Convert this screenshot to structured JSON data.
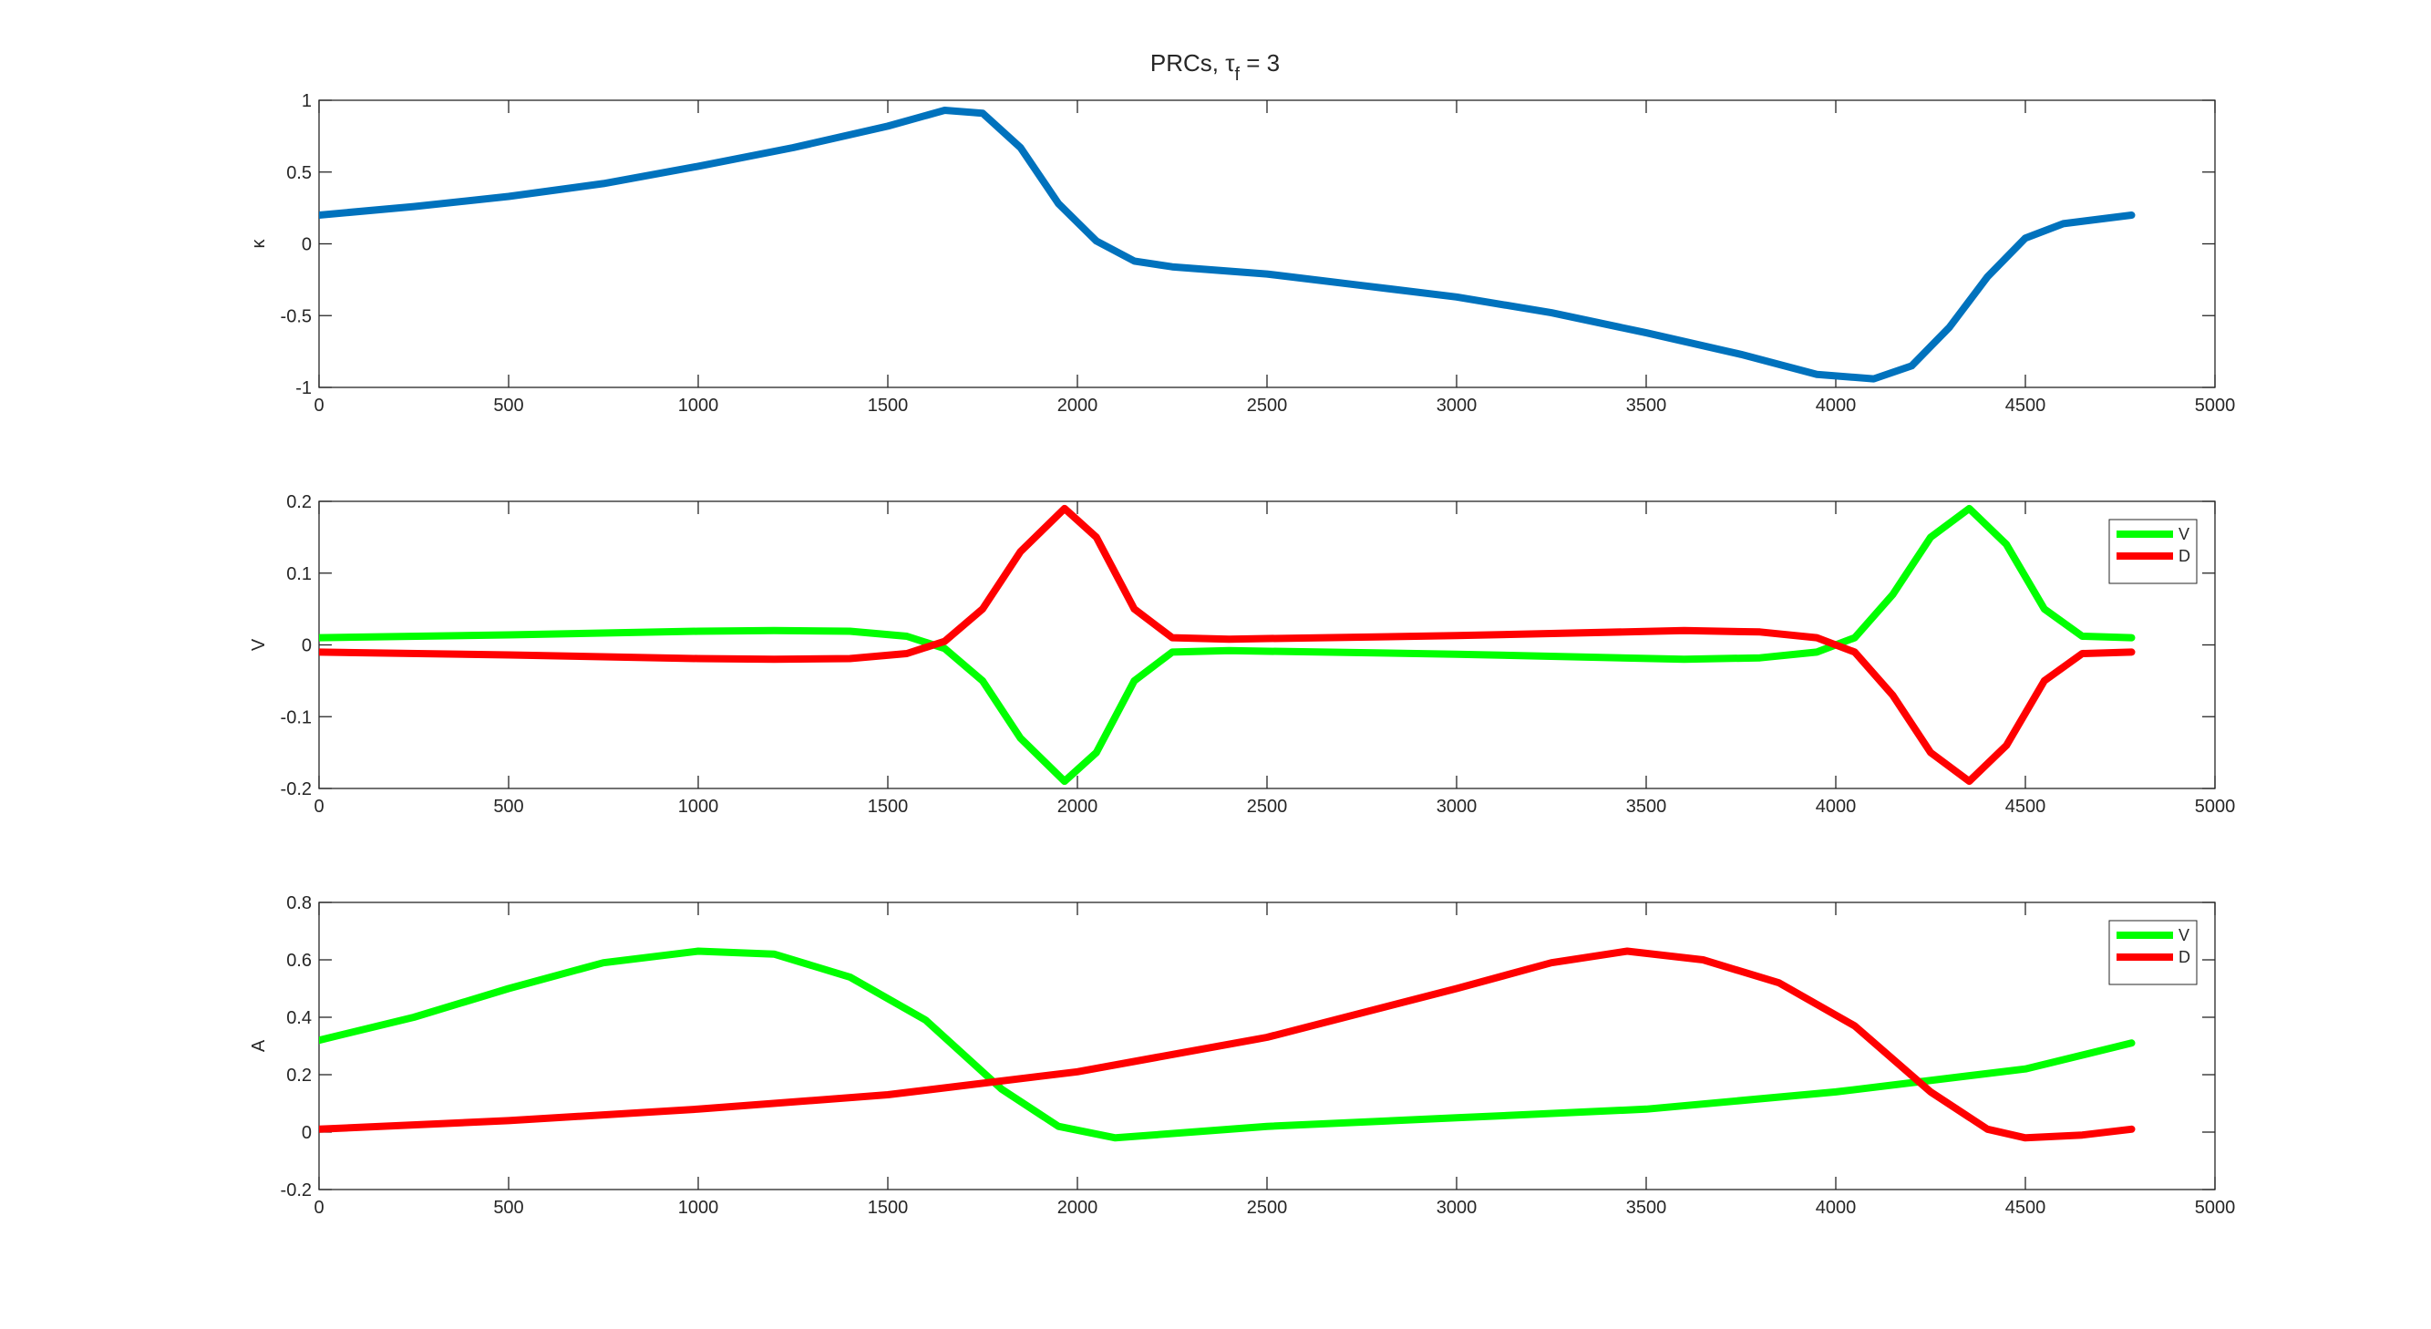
{
  "figure": {
    "title": "PRCs, τ",
    "title_sub": "f",
    "title_tail": " = 3"
  },
  "chart_data": [
    {
      "type": "line",
      "ylabel": "κ",
      "xlim": [
        0,
        5000
      ],
      "ylim": [
        -1,
        1
      ],
      "xticks": [
        0,
        500,
        1000,
        1500,
        2000,
        2500,
        3000,
        3500,
        4000,
        4500,
        5000
      ],
      "yticks": [
        -1,
        -0.5,
        0,
        0.5,
        1
      ],
      "grid": false,
      "legend": null,
      "series": [
        {
          "color": "#0072bd",
          "points": [
            [
              0,
              0.2
            ],
            [
              250,
              0.26
            ],
            [
              500,
              0.33
            ],
            [
              750,
              0.42
            ],
            [
              1000,
              0.54
            ],
            [
              1250,
              0.67
            ],
            [
              1500,
              0.82
            ],
            [
              1650,
              0.93
            ],
            [
              1750,
              0.91
            ],
            [
              1850,
              0.67
            ],
            [
              1950,
              0.28
            ],
            [
              2050,
              0.02
            ],
            [
              2150,
              -0.12
            ],
            [
              2250,
              -0.16
            ],
            [
              2500,
              -0.21
            ],
            [
              2750,
              -0.29
            ],
            [
              3000,
              -0.37
            ],
            [
              3250,
              -0.48
            ],
            [
              3500,
              -0.62
            ],
            [
              3750,
              -0.77
            ],
            [
              3950,
              -0.91
            ],
            [
              4100,
              -0.94
            ],
            [
              4200,
              -0.85
            ],
            [
              4300,
              -0.58
            ],
            [
              4400,
              -0.23
            ],
            [
              4500,
              0.04
            ],
            [
              4600,
              0.14
            ],
            [
              4780,
              0.2
            ]
          ]
        }
      ]
    },
    {
      "type": "line",
      "ylabel": "V",
      "xlim": [
        0,
        5000
      ],
      "ylim": [
        -0.2,
        0.2
      ],
      "xticks": [
        0,
        500,
        1000,
        1500,
        2000,
        2500,
        3000,
        3500,
        4000,
        4500,
        5000
      ],
      "yticks": [
        -0.2,
        -0.1,
        0,
        0.1,
        0.2
      ],
      "grid": false,
      "legend": "top-right",
      "series": [
        {
          "name": "V",
          "color": "#00ff00",
          "points": [
            [
              0,
              0.01
            ],
            [
              500,
              0.014
            ],
            [
              1000,
              0.019
            ],
            [
              1200,
              0.02
            ],
            [
              1400,
              0.019
            ],
            [
              1550,
              0.012
            ],
            [
              1650,
              -0.005
            ],
            [
              1750,
              -0.05
            ],
            [
              1850,
              -0.13
            ],
            [
              1966,
              -0.19
            ],
            [
              2050,
              -0.15
            ],
            [
              2150,
              -0.05
            ],
            [
              2250,
              -0.01
            ],
            [
              2400,
              -0.008
            ],
            [
              3000,
              -0.013
            ],
            [
              3600,
              -0.02
            ],
            [
              3800,
              -0.018
            ],
            [
              3950,
              -0.01
            ],
            [
              4050,
              0.01
            ],
            [
              4150,
              0.07
            ],
            [
              4250,
              0.15
            ],
            [
              4352,
              0.19
            ],
            [
              4450,
              0.14
            ],
            [
              4550,
              0.05
            ],
            [
              4650,
              0.012
            ],
            [
              4780,
              0.01
            ]
          ]
        },
        {
          "name": "D",
          "color": "#ff0000",
          "points": [
            [
              0,
              -0.01
            ],
            [
              500,
              -0.014
            ],
            [
              1000,
              -0.019
            ],
            [
              1200,
              -0.02
            ],
            [
              1400,
              -0.019
            ],
            [
              1550,
              -0.012
            ],
            [
              1650,
              0.005
            ],
            [
              1750,
              0.05
            ],
            [
              1850,
              0.13
            ],
            [
              1966,
              0.19
            ],
            [
              2050,
              0.15
            ],
            [
              2150,
              0.05
            ],
            [
              2250,
              0.01
            ],
            [
              2400,
              0.008
            ],
            [
              3000,
              0.013
            ],
            [
              3600,
              0.02
            ],
            [
              3800,
              0.018
            ],
            [
              3950,
              0.01
            ],
            [
              4050,
              -0.01
            ],
            [
              4150,
              -0.07
            ],
            [
              4250,
              -0.15
            ],
            [
              4352,
              -0.19
            ],
            [
              4450,
              -0.14
            ],
            [
              4550,
              -0.05
            ],
            [
              4650,
              -0.012
            ],
            [
              4780,
              -0.01
            ]
          ]
        }
      ]
    },
    {
      "type": "line",
      "ylabel": "A",
      "xlim": [
        0,
        5000
      ],
      "ylim": [
        -0.2,
        0.8
      ],
      "xticks": [
        0,
        500,
        1000,
        1500,
        2000,
        2500,
        3000,
        3500,
        4000,
        4500,
        5000
      ],
      "yticks": [
        -0.2,
        0,
        0.2,
        0.4,
        0.6,
        0.8
      ],
      "grid": false,
      "legend": "top-right",
      "series": [
        {
          "name": "V",
          "color": "#00ff00",
          "points": [
            [
              0,
              0.32
            ],
            [
              250,
              0.4
            ],
            [
              500,
              0.5
            ],
            [
              750,
              0.59
            ],
            [
              1000,
              0.63
            ],
            [
              1200,
              0.62
            ],
            [
              1400,
              0.54
            ],
            [
              1600,
              0.39
            ],
            [
              1800,
              0.15
            ],
            [
              1950,
              0.02
            ],
            [
              2100,
              -0.02
            ],
            [
              2300,
              0.0
            ],
            [
              2500,
              0.02
            ],
            [
              3000,
              0.05
            ],
            [
              3500,
              0.08
            ],
            [
              4000,
              0.14
            ],
            [
              4500,
              0.22
            ],
            [
              4780,
              0.31
            ]
          ]
        },
        {
          "name": "D",
          "color": "#ff0000",
          "points": [
            [
              0,
              0.01
            ],
            [
              500,
              0.04
            ],
            [
              1000,
              0.08
            ],
            [
              1500,
              0.13
            ],
            [
              2000,
              0.21
            ],
            [
              2500,
              0.33
            ],
            [
              3000,
              0.5
            ],
            [
              3250,
              0.59
            ],
            [
              3450,
              0.63
            ],
            [
              3650,
              0.6
            ],
            [
              3850,
              0.52
            ],
            [
              4050,
              0.37
            ],
            [
              4250,
              0.14
            ],
            [
              4400,
              0.01
            ],
            [
              4500,
              -0.02
            ],
            [
              4650,
              -0.01
            ],
            [
              4780,
              0.01
            ]
          ]
        }
      ]
    }
  ]
}
